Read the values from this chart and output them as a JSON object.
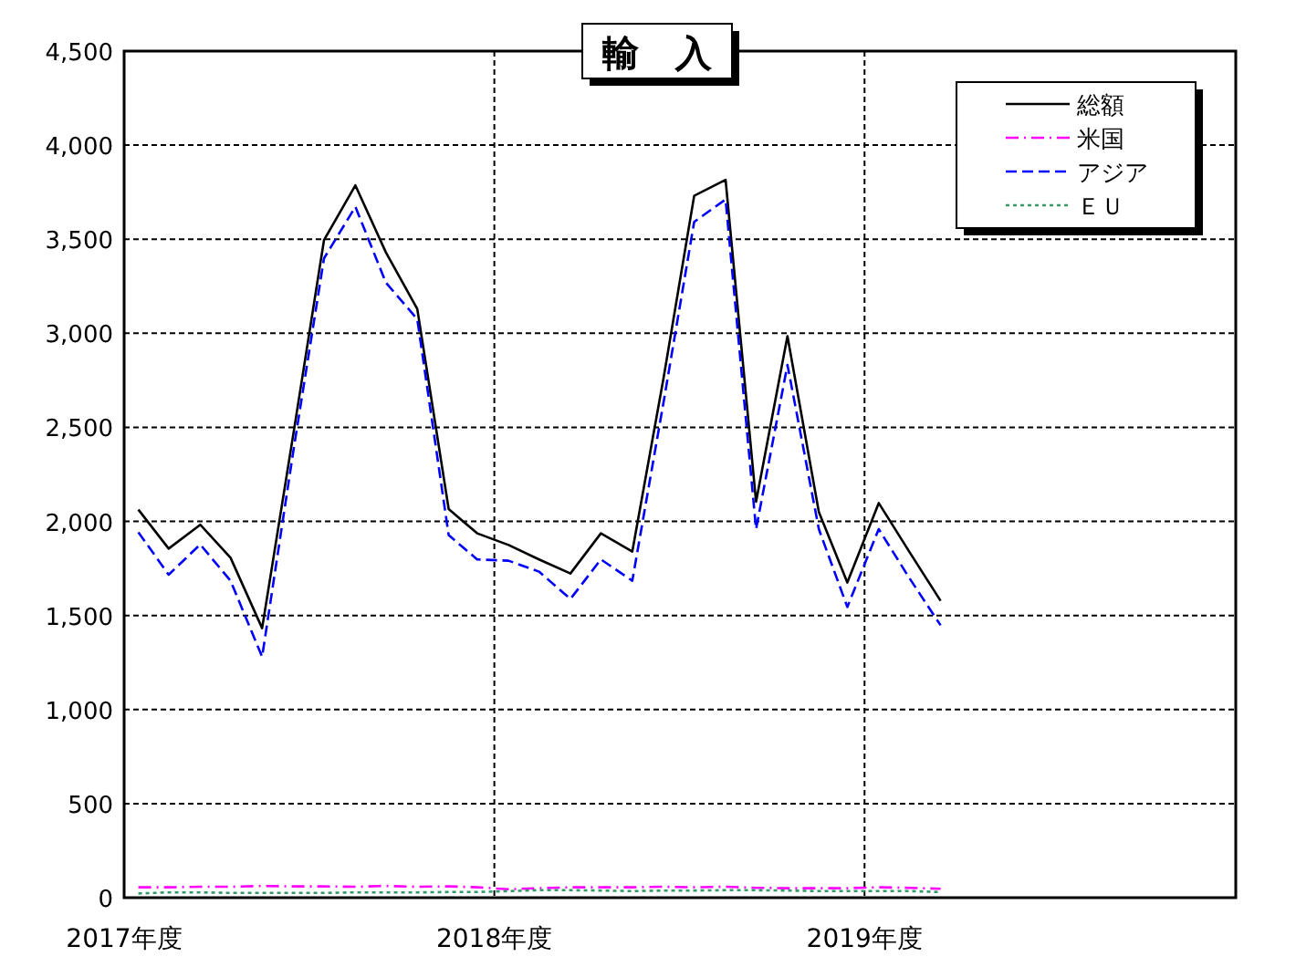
{
  "chart_data": {
    "type": "line",
    "title": "輸　入",
    "x": [
      "2017-04-15",
      "2017-05-15",
      "2017-06-15",
      "2017-07-15",
      "2017-08-15",
      "2017-09-15",
      "2017-10-15",
      "2017-11-15",
      "2017-12-15",
      "2018-01-15",
      "2018-02-15",
      "2018-03-15",
      "2018-04-15",
      "2018-05-15",
      "2018-06-15",
      "2018-07-15",
      "2018-08-15",
      "2018-09-15",
      "2018-10-15",
      "2018-11-15",
      "2018-12-15",
      "2019-01-15",
      "2019-02-15",
      "2019-03-15",
      "2019-04-15",
      "2019-05-15",
      "2019-06-15"
    ],
    "series": [
      {
        "name": "総額",
        "color": "#000000",
        "line_style": "solid",
        "values": [
          2063,
          1855,
          1982,
          1807,
          1432,
          2470,
          3495,
          3786,
          3430,
          3130,
          2066,
          1937,
          1875,
          1798,
          1723,
          1937,
          1840,
          2767,
          3731,
          3815,
          2105,
          2984,
          2050,
          1675,
          2098,
          1840,
          1578
        ]
      },
      {
        "name": "米国",
        "color": "#ff00ff",
        "line_style": "dashdot",
        "values": [
          55,
          55,
          58,
          58,
          62,
          60,
          60,
          58,
          62,
          58,
          60,
          55,
          45,
          50,
          55,
          55,
          55,
          58,
          55,
          58,
          52,
          50,
          50,
          50,
          55,
          52,
          48
        ]
      },
      {
        "name": "アジア",
        "color": "#0000ff",
        "line_style": "dashed",
        "values": [
          1943,
          1717,
          1878,
          1685,
          1280,
          2380,
          3398,
          3673,
          3269,
          3075,
          1927,
          1798,
          1791,
          1733,
          1588,
          1798,
          1685,
          2638,
          3592,
          3712,
          1959,
          2832,
          1959,
          1545,
          1959,
          1700,
          1448
        ]
      },
      {
        "name": "ＥＵ",
        "color": "#339966",
        "line_style": "dotted",
        "values": [
          22,
          28,
          28,
          25,
          25,
          25,
          25,
          28,
          28,
          28,
          30,
          30,
          35,
          40,
          40,
          38,
          35,
          38,
          38,
          40,
          40,
          38,
          35,
          35,
          35,
          35,
          30
        ]
      }
    ],
    "xlim": [
      "2017-04-01",
      "2020-04-01"
    ],
    "xticks": [
      {
        "value": "2017-04-01",
        "label": "2017年度"
      },
      {
        "value": "2018-04-01",
        "label": "2018年度"
      },
      {
        "value": "2019-04-01",
        "label": "2019年度"
      }
    ],
    "ylim": [
      0,
      4500
    ],
    "yticks": [
      0,
      500,
      {
        "value": 1000,
        "label": "1,000"
      },
      {
        "value": 1500,
        "label": "1,500"
      },
      {
        "value": 2000,
        "label": "2,000"
      },
      {
        "value": 2500,
        "label": "2,500"
      },
      {
        "value": 3000,
        "label": "3,000"
      },
      {
        "value": 3500,
        "label": "3,500"
      },
      {
        "value": 4000,
        "label": "4,000"
      },
      {
        "value": 4500,
        "label": "4,500"
      }
    ],
    "grid": true,
    "legend": "top right",
    "marker": "none"
  }
}
